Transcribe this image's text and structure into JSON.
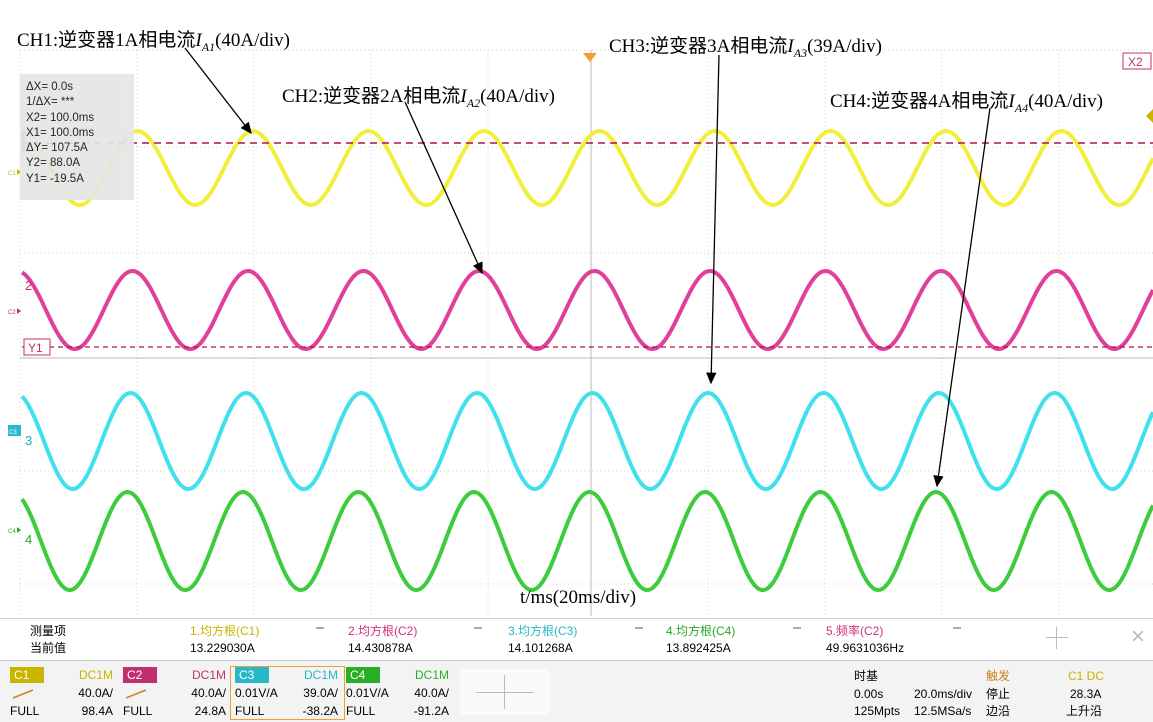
{
  "annotations": {
    "ch1": {
      "prefix": "CH1:逆变器1A相电流",
      "sym": "I",
      "sub": "A1",
      "suffix": "(40A/div)"
    },
    "ch2": {
      "prefix": "CH2:逆变器2A相电流",
      "sym": "I",
      "sub": "A2",
      "suffix": "(40A/div)"
    },
    "ch3": {
      "prefix": "CH3:逆变器3A相电流",
      "sym": "I",
      "sub": "A3",
      "suffix": "(39A/div)"
    },
    "ch4": {
      "prefix": "CH4:逆变器4A相电流",
      "sym": "I",
      "sub": "A4",
      "suffix": "(40A/div)"
    },
    "xaxis": "t/ms(20ms/div)"
  },
  "cursor_readout": [
    "ΔX= 0.0s",
    "1/ΔX= ***",
    "X2= 100.0ms",
    "X1= 100.0ms",
    "ΔY= 107.5A",
    "Y2= 88.0A",
    "Y1= -19.5A"
  ],
  "markers": {
    "x2": "X2",
    "y1": "Y1",
    "c1": "C1",
    "c2": "C2",
    "c3": "C3",
    "c4": "C4",
    "n2": "2",
    "n3": "3",
    "n4": "4"
  },
  "channels": [
    {
      "id": "C1",
      "color": "#f0f03c",
      "num": "1",
      "label": "CH1"
    },
    {
      "id": "C2",
      "color": "#e0409a",
      "num": "2",
      "label": "CH2"
    },
    {
      "id": "C3",
      "color": "#40e0ec",
      "num": "3",
      "label": "CH3"
    },
    {
      "id": "C4",
      "color": "#3ccc3c",
      "num": "4",
      "label": "CH4"
    }
  ],
  "measurements": {
    "header": "测量项",
    "row_label": "当前值",
    "items": [
      {
        "name": "1.均方根(C1)",
        "value": "13.229030A",
        "color": "#c9b400"
      },
      {
        "name": "2.均方根(C2)",
        "value": "14.430878A",
        "color": "#d0307c"
      },
      {
        "name": "3.均方根(C3)",
        "value": "14.101268A",
        "color": "#27b8c9"
      },
      {
        "name": "4.均方根(C4)",
        "value": "13.892425A",
        "color": "#27a827"
      },
      {
        "name": "5.频率(C2)",
        "value": "49.9631036Hz",
        "color": "#d0307c"
      }
    ]
  },
  "channel_settings": [
    {
      "tag": "C1",
      "coupling": "DC1M",
      "r2_left": "",
      "r2_right": "40.0A/",
      "r3_left": "FULL",
      "r3_right": "98.4A",
      "color": "#c9b400"
    },
    {
      "tag": "C2",
      "coupling": "DC1M",
      "r2_left": "",
      "r2_right": "40.0A/",
      "r3_left": "FULL",
      "r3_right": "24.8A",
      "color": "#c0306f"
    },
    {
      "tag": "C3",
      "coupling": "DC1M",
      "r2_left": "0.01V/A",
      "r2_right": "39.0A/",
      "r3_left": "FULL",
      "r3_right": "-38.2A",
      "color": "#27b8c9"
    },
    {
      "tag": "C4",
      "coupling": "DC1M",
      "r2_left": "0.01V/A",
      "r2_right": "40.0A/",
      "r3_left": "FULL",
      "r3_right": "-91.2A",
      "color": "#27b027"
    }
  ],
  "timebase": {
    "title": "时基",
    "position": "0.00s",
    "scale": "20.0ms/div",
    "memory": "125Mpts",
    "rate": "12.5MSa/s"
  },
  "trigger": {
    "title": "触发",
    "source": "C1 DC",
    "status": "停止",
    "level": "28.3A",
    "type": "边沿",
    "slope": "上升沿"
  },
  "icons": {
    "add": "plus-icon",
    "close": "close-icon",
    "trigger_marker": "triangle-down-icon"
  }
}
